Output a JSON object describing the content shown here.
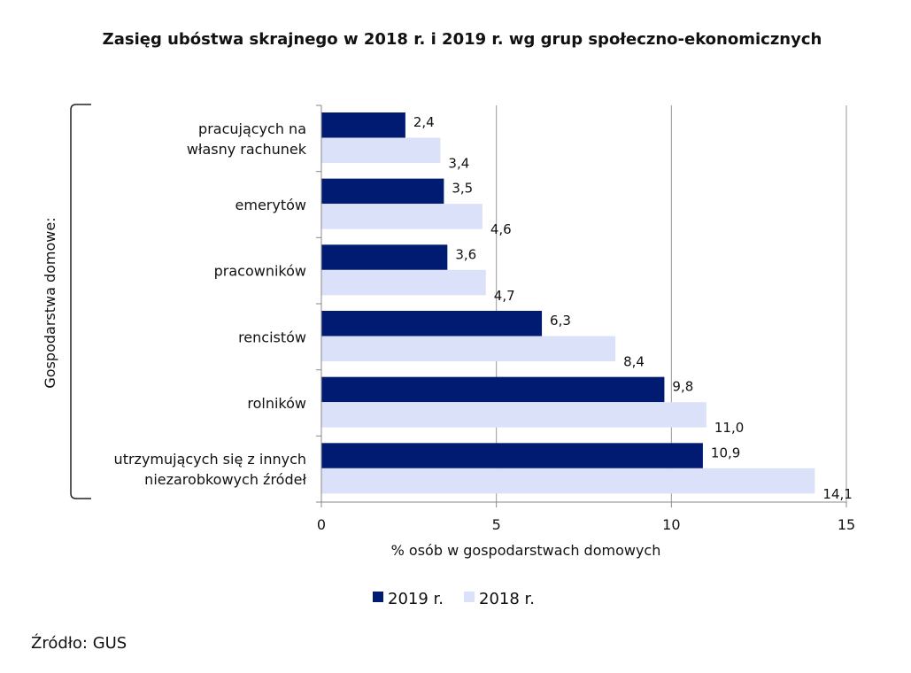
{
  "chart_data": {
    "type": "bar",
    "orientation": "horizontal",
    "title": "Zasięg ubóstwa skrajnego w 2018 r. i 2019 r. wg grup społeczno-ekonomicznych",
    "group_label": "Gospodarstwa domowe:",
    "categories": [
      [
        "pracujących na",
        "własny rachunek"
      ],
      [
        "emerytów"
      ],
      [
        "pracowników"
      ],
      [
        "rencistów"
      ],
      [
        "rolników"
      ],
      [
        "utrzymujących się z innych",
        "niezarobkowych źródeł"
      ]
    ],
    "series": [
      {
        "name": "2019 r.",
        "color": "#001b71",
        "values": [
          2.4,
          3.5,
          3.6,
          6.3,
          9.8,
          10.9
        ],
        "labels": [
          "2,4",
          "3,5",
          "3,6",
          "6,3",
          "9,8",
          "10,9"
        ]
      },
      {
        "name": "2018 r.",
        "color": "#dbe1f8",
        "values": [
          3.4,
          4.6,
          4.7,
          8.4,
          11.0,
          14.1
        ],
        "labels": [
          "3,4",
          "4,6",
          "4,7",
          "8,4",
          "11,0",
          "14,1"
        ]
      }
    ],
    "xlabel": "% osób w gospodarstwach domowych",
    "xlim": [
      0,
      15
    ],
    "xticks": [
      0,
      5,
      10,
      15
    ],
    "xtick_labels": [
      "0",
      "5",
      "10",
      "15"
    ],
    "grid": "vertical",
    "legend": "bottom"
  },
  "source": "Źródło: GUS"
}
